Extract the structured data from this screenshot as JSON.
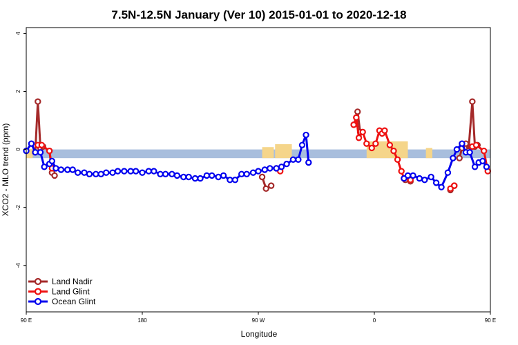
{
  "chart_data": {
    "type": "line",
    "title": "7.5N-12.5N January (Ver 10)   2015-01-01 to 2020-12-18",
    "xlabel": "Longitude",
    "ylabel": "XCO2 - MLO trend (ppm)",
    "xlim": [
      90,
      450
    ],
    "ylim": [
      -5.6,
      4.2
    ],
    "x_ticks": [
      {
        "value": 90,
        "label": "90 E"
      },
      {
        "value": 180,
        "label": "180"
      },
      {
        "value": 270,
        "label": "90 W"
      },
      {
        "value": 360,
        "label": "0"
      },
      {
        "value": 450,
        "label": "90 E"
      },
      {
        "value": 540,
        "label": "180"
      }
    ],
    "y_ticks": [
      -4,
      -2,
      0,
      2,
      4
    ],
    "grid": false,
    "legend_position": "bottom-left",
    "band": {
      "y_low": -0.3,
      "y_high": 0.0,
      "color": "#a8bedd"
    },
    "land_fill_color": "#f5d58a",
    "land_segments": [
      [
        90,
        95,
        0.02
      ],
      [
        273,
        282,
        0.08
      ],
      [
        283,
        296,
        0.18
      ],
      [
        354,
        386,
        0.28
      ],
      [
        400,
        405,
        0.05
      ]
    ],
    "series": [
      {
        "name": "Land Nadir",
        "color": "#a52a2a",
        "segments": [
          [
            [
              97,
              -0.1
            ],
            [
              99,
              1.65
            ],
            [
              101,
              0.05
            ],
            [
              103,
              0.1
            ],
            [
              108,
              -0.05
            ],
            [
              110,
              -0.8
            ],
            [
              112,
              -0.9
            ]
          ],
          [
            [
              273,
              -0.95
            ],
            [
              276,
              -1.35
            ],
            [
              280,
              -1.25
            ]
          ],
          [
            [
              344,
              0.85
            ],
            [
              346,
              1.1
            ],
            [
              347,
              1.3
            ],
            [
              349,
              0.6
            ]
          ],
          [
            [
              384,
              -1.05
            ],
            [
              388,
              -1.1
            ]
          ],
          [
            [
              419,
              -1.4
            ],
            [
              422,
              -1.25
            ]
          ],
          [
            [
              426,
              -0.3
            ],
            [
              428,
              0.05
            ],
            [
              431,
              0.2
            ],
            [
              433,
              -0.05
            ],
            [
              436,
              1.65
            ],
            [
              438,
              0.1
            ],
            [
              440,
              0.15
            ]
          ]
        ]
      },
      {
        "name": "Land Glint",
        "color": "#ee1111",
        "segments": [
          [
            [
              99,
              0.15
            ],
            [
              102,
              0.15
            ],
            [
              108,
              -0.05
            ],
            [
              110,
              -0.65
            ]
          ],
          [
            [
              284,
              -0.65
            ],
            [
              287,
              -0.75
            ]
          ],
          [
            [
              344,
              0.85
            ],
            [
              346,
              1.1
            ],
            [
              348,
              0.4
            ],
            [
              351,
              0.6
            ],
            [
              354,
              0.2
            ],
            [
              358,
              0.05
            ],
            [
              361,
              0.2
            ],
            [
              364,
              0.65
            ],
            [
              366,
              0.55
            ],
            [
              368,
              0.65
            ],
            [
              372,
              0.15
            ],
            [
              375,
              -0.05
            ],
            [
              378,
              -0.35
            ],
            [
              381,
              -0.75
            ],
            [
              383,
              -1.0
            ],
            [
              388,
              -1.05
            ]
          ],
          [
            [
              419,
              -1.35
            ],
            [
              422,
              -1.25
            ]
          ],
          [
            [
              436,
              0.1
            ],
            [
              439,
              0.15
            ],
            [
              445,
              -0.05
            ],
            [
              448,
              -0.75
            ]
          ]
        ]
      },
      {
        "name": "Ocean Glint",
        "color": "#0000ee",
        "segments": [
          [
            [
              90,
              -0.05
            ],
            [
              94,
              0.2
            ],
            [
              97,
              -0.1
            ],
            [
              101,
              -0.1
            ],
            [
              104,
              -0.6
            ],
            [
              108,
              -0.5
            ],
            [
              110,
              -0.4
            ],
            [
              113,
              -0.65
            ],
            [
              117,
              -0.7
            ],
            [
              122,
              -0.7
            ],
            [
              126,
              -0.7
            ],
            [
              130,
              -0.8
            ],
            [
              135,
              -0.8
            ],
            [
              139,
              -0.85
            ],
            [
              144,
              -0.85
            ],
            [
              148,
              -0.85
            ],
            [
              152,
              -0.8
            ],
            [
              157,
              -0.8
            ],
            [
              161,
              -0.75
            ],
            [
              166,
              -0.75
            ],
            [
              171,
              -0.75
            ],
            [
              175,
              -0.75
            ],
            [
              180,
              -0.8
            ],
            [
              185,
              -0.75
            ],
            [
              189,
              -0.75
            ],
            [
              194,
              -0.85
            ],
            [
              198,
              -0.85
            ],
            [
              203,
              -0.85
            ],
            [
              207,
              -0.9
            ],
            [
              212,
              -0.95
            ],
            [
              216,
              -0.95
            ],
            [
              221,
              -1.0
            ],
            [
              225,
              -1.0
            ],
            [
              230,
              -0.9
            ],
            [
              234,
              -0.9
            ],
            [
              239,
              -0.95
            ],
            [
              243,
              -0.9
            ],
            [
              248,
              -1.05
            ],
            [
              252,
              -1.05
            ],
            [
              257,
              -0.85
            ],
            [
              261,
              -0.85
            ],
            [
              266,
              -0.8
            ],
            [
              270,
              -0.75
            ],
            [
              275,
              -0.7
            ],
            [
              279,
              -0.65
            ],
            [
              284,
              -0.65
            ],
            [
              288,
              -0.6
            ],
            [
              292,
              -0.5
            ],
            [
              297,
              -0.35
            ],
            [
              301,
              -0.35
            ],
            [
              304,
              0.15
            ],
            [
              307,
              0.5
            ],
            [
              309,
              -0.45
            ]
          ],
          [
            [
              383,
              -1.0
            ],
            [
              386,
              -0.9
            ],
            [
              390,
              -0.9
            ],
            [
              395,
              -1.0
            ],
            [
              399,
              -1.05
            ],
            [
              404,
              -0.95
            ],
            [
              408,
              -1.15
            ],
            [
              412,
              -1.3
            ],
            [
              417,
              -0.8
            ],
            [
              421,
              -0.3
            ],
            [
              424,
              0.0
            ],
            [
              428,
              0.2
            ],
            [
              431,
              -0.1
            ],
            [
              434,
              -0.1
            ],
            [
              438,
              -0.6
            ],
            [
              441,
              -0.45
            ],
            [
              444,
              -0.4
            ],
            [
              447,
              -0.6
            ],
            [
              452,
              -0.7
            ],
            [
              456,
              -0.75
            ],
            [
              460,
              -0.75
            ],
            [
              465,
              -0.8
            ],
            [
              469,
              -0.85
            ],
            [
              474,
              -0.85
            ],
            [
              478,
              -0.8
            ]
          ]
        ]
      }
    ]
  }
}
